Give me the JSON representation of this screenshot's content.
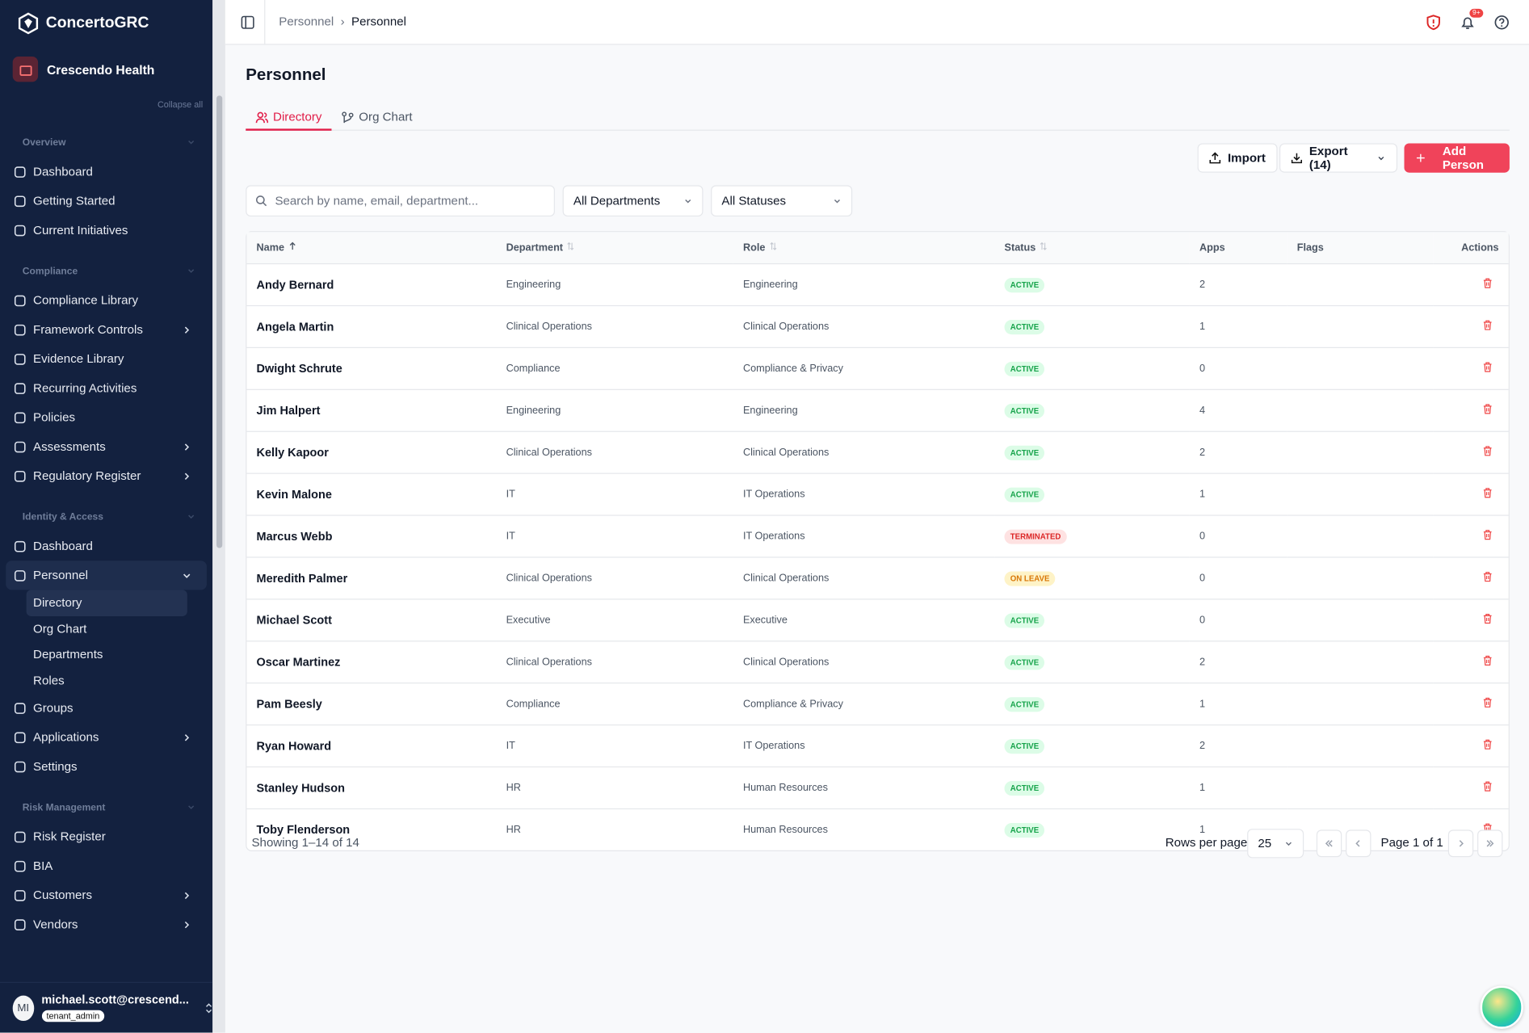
{
  "sidebar": {
    "brand": "ConcertoGRC",
    "org": "Crescendo Health",
    "collapse": "Collapse all",
    "sections": [
      {
        "title": "Overview",
        "items": [
          {
            "label": "Dashboard"
          },
          {
            "label": "Getting Started"
          },
          {
            "label": "Current Initiatives"
          }
        ]
      },
      {
        "title": "Compliance",
        "items": [
          {
            "label": "Compliance Library"
          },
          {
            "label": "Framework Controls",
            "expandable": true
          },
          {
            "label": "Evidence Library"
          },
          {
            "label": "Recurring Activities"
          },
          {
            "label": "Policies"
          },
          {
            "label": "Assessments",
            "expandable": true
          },
          {
            "label": "Regulatory Register",
            "expandable": true
          }
        ]
      },
      {
        "title": "Identity & Access",
        "items": [
          {
            "label": "Dashboard"
          },
          {
            "label": "Personnel",
            "expandable": true,
            "active": true,
            "children": [
              "Directory",
              "Org Chart",
              "Departments",
              "Roles"
            ],
            "active_child": 0
          },
          {
            "label": "Groups"
          },
          {
            "label": "Applications",
            "expandable": true
          },
          {
            "label": "Settings"
          }
        ]
      },
      {
        "title": "Risk Management",
        "items": [
          {
            "label": "Risk Register"
          },
          {
            "label": "BIA"
          },
          {
            "label": "Customers",
            "expandable": true
          },
          {
            "label": "Vendors",
            "expandable": true
          }
        ]
      }
    ],
    "user": {
      "initials": "MI",
      "email": "michael.scott@crescend...",
      "role": "tenant_admin"
    }
  },
  "topbar": {
    "breadcrumb": [
      "Personnel",
      "Personnel"
    ],
    "notif_badge": "9+"
  },
  "page": {
    "title": "Personnel",
    "tabs": [
      "Directory",
      "Org Chart"
    ],
    "import": "Import",
    "export": "Export (14)",
    "add": "Add Person",
    "search_placeholder": "Search by name, email, department...",
    "filters": [
      "All Departments",
      "All Statuses"
    ]
  },
  "table": {
    "columns": [
      "Name",
      "Department",
      "Role",
      "Status",
      "Apps",
      "Flags",
      "Actions"
    ],
    "status_colors": {
      "ACTIVE": [
        "#dcfce7",
        "#16a34a"
      ],
      "TERMINATED": [
        "#fee2e2",
        "#dc2626"
      ],
      "ON LEAVE": [
        "#fef3c7",
        "#d97706"
      ]
    },
    "rows": [
      [
        "Andy Bernard",
        "Engineering",
        "Engineering",
        "ACTIVE",
        2
      ],
      [
        "Angela Martin",
        "Clinical Operations",
        "Clinical Operations",
        "ACTIVE",
        1
      ],
      [
        "Dwight Schrute",
        "Compliance",
        "Compliance & Privacy",
        "ACTIVE",
        0
      ],
      [
        "Jim Halpert",
        "Engineering",
        "Engineering",
        "ACTIVE",
        4
      ],
      [
        "Kelly Kapoor",
        "Clinical Operations",
        "Clinical Operations",
        "ACTIVE",
        2
      ],
      [
        "Kevin Malone",
        "IT",
        "IT Operations",
        "ACTIVE",
        1
      ],
      [
        "Marcus Webb",
        "IT",
        "IT Operations",
        "TERMINATED",
        0
      ],
      [
        "Meredith Palmer",
        "Clinical Operations",
        "Clinical Operations",
        "ON LEAVE",
        0
      ],
      [
        "Michael Scott",
        "Executive",
        "Executive",
        "ACTIVE",
        0
      ],
      [
        "Oscar Martinez",
        "Clinical Operations",
        "Clinical Operations",
        "ACTIVE",
        2
      ],
      [
        "Pam Beesly",
        "Compliance",
        "Compliance & Privacy",
        "ACTIVE",
        1
      ],
      [
        "Ryan Howard",
        "IT",
        "IT Operations",
        "ACTIVE",
        2
      ],
      [
        "Stanley Hudson",
        "HR",
        "Human Resources",
        "ACTIVE",
        1
      ],
      [
        "Toby Flenderson",
        "HR",
        "Human Resources",
        "ACTIVE",
        1
      ]
    ]
  },
  "footer": {
    "showing": "Showing 1–14 of 14",
    "rows_per_page_label": "Rows per page",
    "rows_per_page": "25",
    "page": "Page 1 of 1"
  }
}
